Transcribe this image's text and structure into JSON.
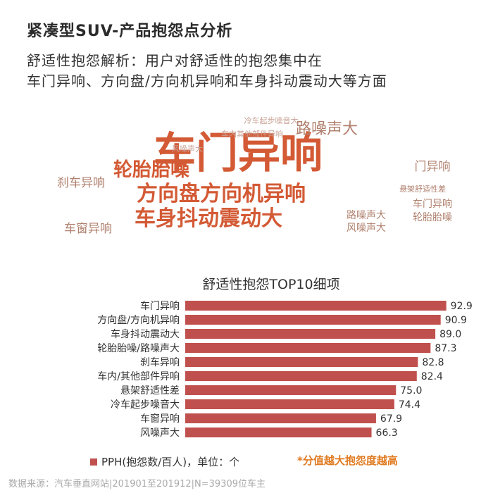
{
  "title": "紧凑型SUV-产品抱怨点分析",
  "subtitle_line1": "舒适性抱怨解析：用户对舒适性的抱怨集中在",
  "subtitle_line2": "车门异响、方向盘/方向机异响和车身抖动震动大等方面",
  "wordcloud": {
    "words": [
      {
        "text": "车门异响",
        "weight": 10,
        "color": "#d35a35"
      },
      {
        "text": "车身抖动震动大",
        "weight": 7,
        "color": "#d35a35"
      },
      {
        "text": "方向盘方向机异响",
        "weight": 7,
        "color": "#d35a35"
      },
      {
        "text": "轮胎胎噪",
        "weight": 6,
        "color": "#d35a35"
      },
      {
        "text": "路噪声大",
        "weight": 5,
        "color": "#b0806e"
      },
      {
        "text": "刹车异响",
        "weight": 4,
        "color": "#b0806e"
      },
      {
        "text": "车窗异响",
        "weight": 4,
        "color": "#b0806e"
      },
      {
        "text": "门异响",
        "weight": 4,
        "color": "#b0806e"
      },
      {
        "text": "路噪声大",
        "weight": 3,
        "color": "#b0806e"
      },
      {
        "text": "风噪声大",
        "weight": 3,
        "color": "#b0806e"
      },
      {
        "text": "车门异响",
        "weight": 3,
        "color": "#b0806e"
      },
      {
        "text": "轮胎胎噪",
        "weight": 3,
        "color": "#b0806e"
      },
      {
        "text": "悬架舒适性差",
        "weight": 2,
        "color": "#b0806e"
      },
      {
        "text": "冷车起步噪音大",
        "weight": 2,
        "color": "#c8a296"
      },
      {
        "text": "车内其他部件异响",
        "weight": 2,
        "color": "#c8a296"
      },
      {
        "text": "风噪声大",
        "weight": 2,
        "color": "#c8a296"
      }
    ]
  },
  "chart_data": {
    "type": "bar",
    "orientation": "horizontal",
    "title": "舒适性抱怨TOP10细项",
    "categories": [
      "车门异响",
      "方向盘/方向机异响",
      "车身抖动震动大",
      "轮胎胎噪/路噪声大",
      "刹车异响",
      "车内/其他部件异响",
      "悬架舒适性差",
      "冷车起步噪音大",
      "车窗异响",
      "风噪声大"
    ],
    "series": [
      {
        "name": "PPH(抱怨数/百人)，单位：个",
        "values": [
          92.9,
          90.9,
          89.0,
          87.3,
          82.8,
          82.4,
          75.0,
          74.4,
          67.9,
          66.3
        ]
      }
    ],
    "value_labels": [
      "92.9",
      "90.9",
      "89.0",
      "87.3",
      "82.8",
      "82.4",
      "75.0",
      "74.4",
      "67.9",
      "66.3"
    ],
    "xlim": [
      0,
      100
    ],
    "bar_color": "#c0504d",
    "legend_position": "bottom-left",
    "grid": false
  },
  "note": "*分值越大抱怨度越高",
  "source": "数据来源：汽车垂直网站|201901至201912|N=39309位车主"
}
